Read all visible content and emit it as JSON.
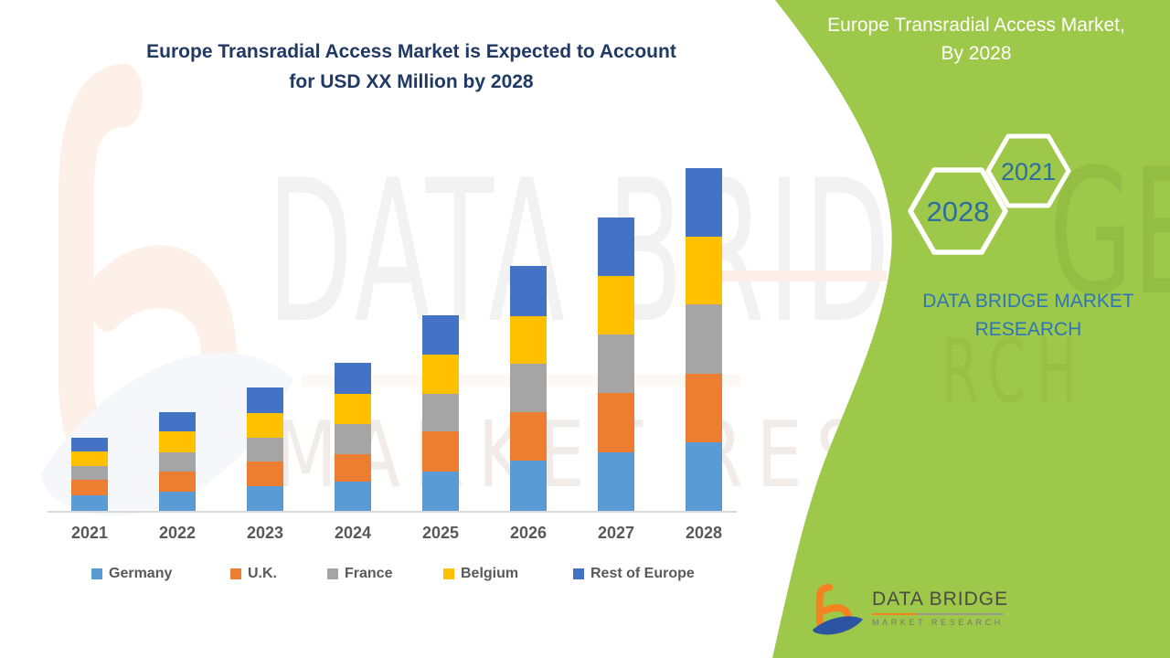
{
  "title": {
    "line1": "Europe Transradial Access Market is Expected to Account",
    "line2": "for USD XX Million by 2028"
  },
  "panel": {
    "background_color": "#9EC84A",
    "title_line1": "Europe Transradial Access Market,",
    "title_line2": "By 2028",
    "hexagons": [
      {
        "label": "2028"
      },
      {
        "label": "2021"
      }
    ],
    "brand_line1": "DATA BRIDGE MARKET",
    "brand_line2": "RESEARCH",
    "brand_text_color": "#2E75B6",
    "year_text_color": "#2C6F9E"
  },
  "footer_logo": {
    "name": "DATA BRIDGE",
    "subtitle": "MARKET RESEARCH",
    "icon": "data-bridge-b-swoosh-logo",
    "orange": "#F58220",
    "blue": "#2B55A2"
  },
  "watermark": {
    "row1": "DATA BRIDGE",
    "row2": "MARKET RESEARCH",
    "panel_fragment1": "GE",
    "panel_fragment2": "RCH"
  },
  "chart_data": {
    "type": "bar",
    "stacked": true,
    "title": "Europe Transradial Access Market is Expected to Account for USD XX Million by 2028",
    "xlabel": "",
    "ylabel": "",
    "y_axis_visible": false,
    "grid": false,
    "legend_position": "bottom",
    "units_note": "No y-axis shown (values are 'USD XX Million'); series values are relative estimates measured from bar heights, 1 unit = 1 px",
    "categories": [
      "2021",
      "2022",
      "2023",
      "2024",
      "2025",
      "2026",
      "2027",
      "2028"
    ],
    "series": [
      {
        "name": "Germany",
        "color": "#5B9BD5",
        "values": [
          17,
          21,
          27,
          32,
          43,
          55,
          64,
          75
        ]
      },
      {
        "name": "U.K.",
        "color": "#ED7D31",
        "values": [
          17,
          22,
          27,
          30,
          44,
          53,
          65,
          75
        ]
      },
      {
        "name": "France",
        "color": "#A5A5A5",
        "values": [
          15,
          21,
          26,
          33,
          41,
          53,
          64,
          76
        ]
      },
      {
        "name": "Belgium",
        "color": "#FFC000",
        "values": [
          16,
          23,
          27,
          33,
          43,
          52,
          64,
          74
        ]
      },
      {
        "name": "Rest of Europe",
        "color": "#4472C4",
        "values": [
          15,
          21,
          28,
          34,
          43,
          55,
          64,
          75
        ]
      }
    ],
    "stack_totals": [
      80,
      108,
      135,
      162,
      214,
      268,
      321,
      375
    ]
  },
  "colors": {
    "title_navy": "#1F3864",
    "axis_label_gray": "#595959",
    "axis_line": "#D9D9D9"
  }
}
